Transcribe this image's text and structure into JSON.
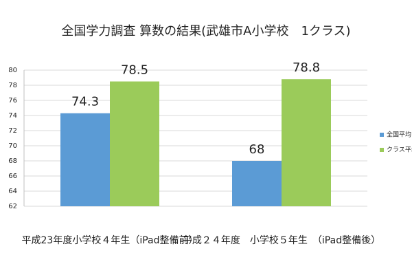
{
  "chart_data": {
    "type": "bar",
    "title": "全国学力調査 算数の結果(武雄市A小学校　1クラス)",
    "categories": [
      "平成23年度小学校４年生（iPad整備前）",
      "平成２４年度　小学校５年生　（iPad整備後）"
    ],
    "series": [
      {
        "name": "全国平均",
        "color": "#5b9bd5",
        "values": [
          74.3,
          68
        ]
      },
      {
        "name": "クラス平均",
        "color": "#9bcb5a",
        "values": [
          78.5,
          78.8
        ]
      }
    ],
    "ylim": [
      62,
      80
    ],
    "yticks": [
      62,
      64,
      66,
      68,
      70,
      72,
      74,
      76,
      78,
      80
    ],
    "grid": true,
    "legend": "right"
  }
}
